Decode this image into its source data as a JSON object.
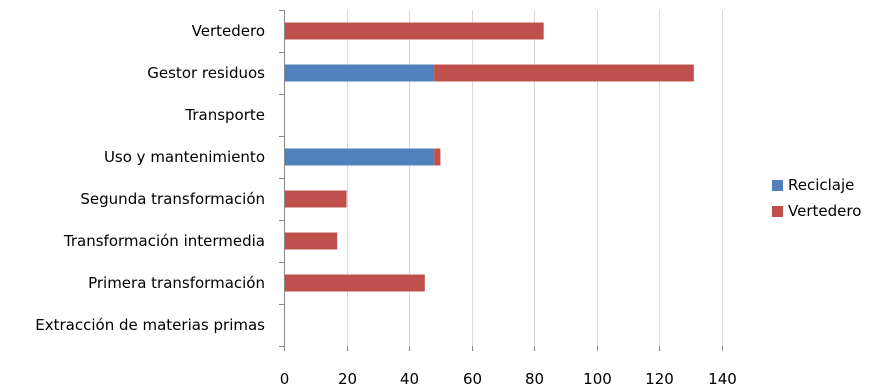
{
  "chart_data": {
    "type": "bar",
    "orientation": "horizontal",
    "stacked": true,
    "categories": [
      "Extracción de materias primas",
      "Primera transformación",
      "Transformación intermedia",
      "Segunda transformación",
      "Uso y mantenimiento",
      "Transporte",
      "Gestor residuos",
      "Vertedero"
    ],
    "series": [
      {
        "name": "Reciclaje",
        "color": "#4F81BD",
        "values": [
          0,
          0,
          0,
          0,
          48,
          0,
          48,
          0
        ]
      },
      {
        "name": "Vertedero",
        "color": "#C0504D",
        "values": [
          0,
          45,
          17,
          20,
          2,
          0,
          83,
          83
        ]
      }
    ],
    "xlim": [
      0,
      140
    ],
    "xticks": [
      "0",
      "20",
      "40",
      "60",
      "80",
      "100",
      "120",
      "140"
    ],
    "grid": true,
    "legend_position": "right",
    "title": "",
    "xlabel": "",
    "ylabel": ""
  }
}
